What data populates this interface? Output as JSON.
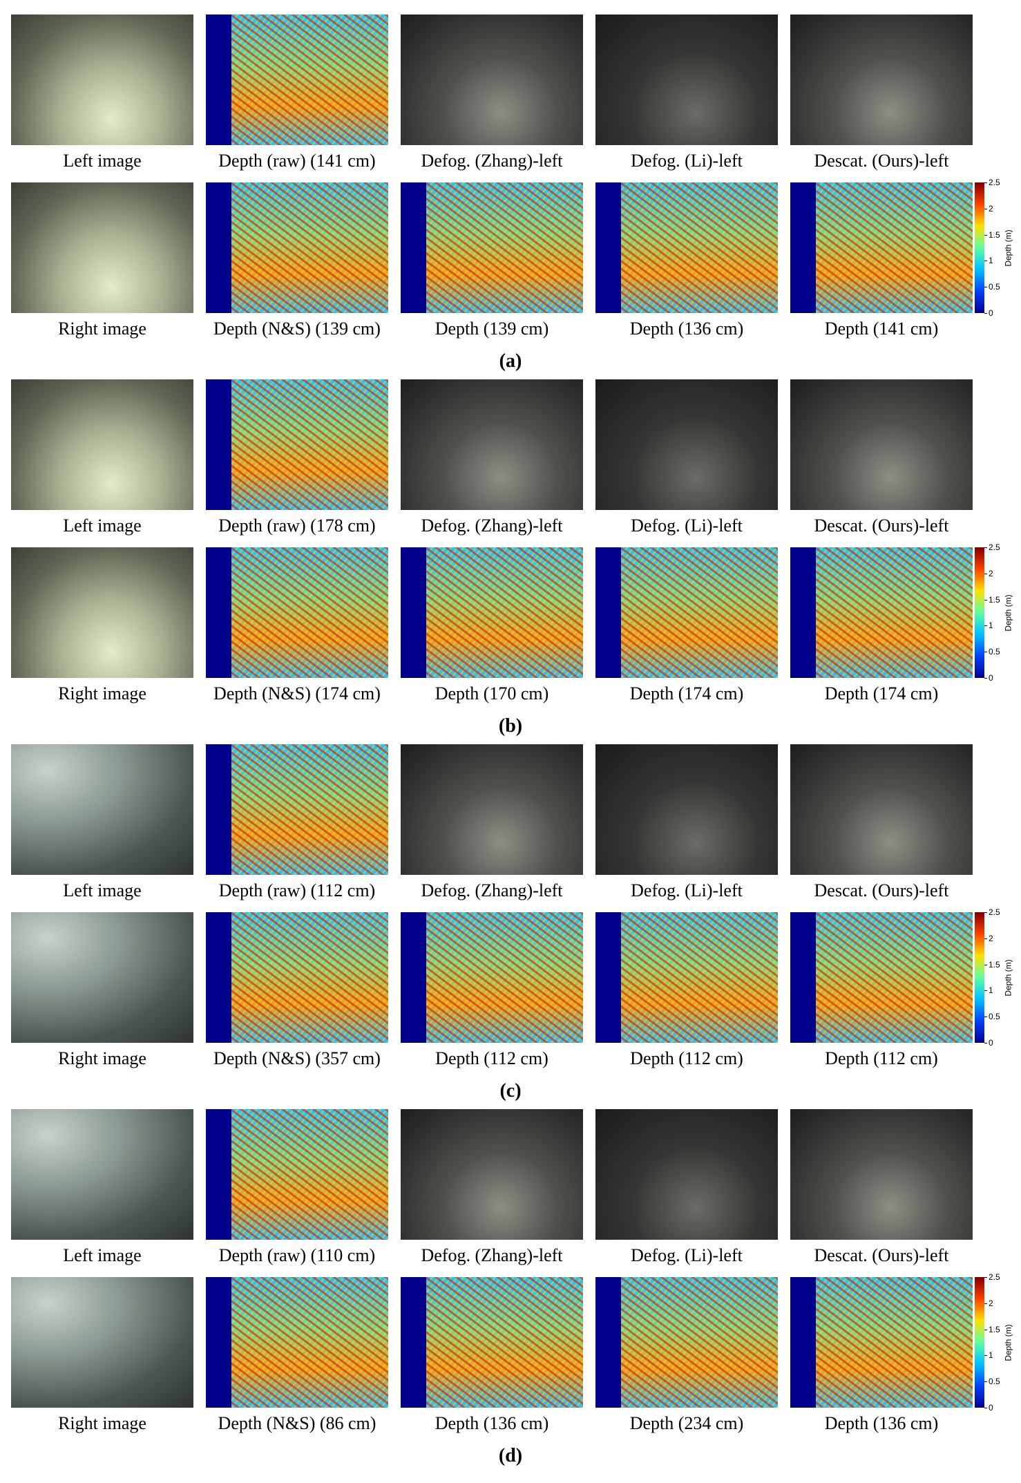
{
  "panels": [
    {
      "label": "(a)",
      "rows": [
        [
          "Left image",
          "Depth (raw) (141 cm)",
          "Defog. (Zhang)-left",
          "Defog. (Li)-left",
          "Descat. (Ours)-left"
        ],
        [
          "Right image",
          "Depth (N&S) (139 cm)",
          "Depth (139 cm)",
          "Depth (136 cm)",
          "Depth (141 cm)"
        ]
      ],
      "colorbar": {
        "ticks": [
          0,
          0.5,
          1,
          1.5,
          2,
          2.5
        ],
        "label": "Depth (m)"
      }
    },
    {
      "label": "(b)",
      "rows": [
        [
          "Left image",
          "Depth (raw) (178 cm)",
          "Defog. (Zhang)-left",
          "Defog. (Li)-left",
          "Descat. (Ours)-left"
        ],
        [
          "Right image",
          "Depth (N&S) (174 cm)",
          "Depth (170 cm)",
          "Depth (174 cm)",
          "Depth (174 cm)"
        ]
      ],
      "colorbar": {
        "ticks": [
          0,
          0.5,
          1,
          1.5,
          2,
          2.5
        ],
        "label": "Depth (m)"
      }
    },
    {
      "label": "(c)",
      "rows": [
        [
          "Left image",
          "Depth (raw) (112 cm)",
          "Defog. (Zhang)-left",
          "Defog. (Li)-left",
          "Descat. (Ours)-left"
        ],
        [
          "Right image",
          "Depth (N&S) (357 cm)",
          "Depth (112 cm)",
          "Depth (112 cm)",
          "Depth (112 cm)"
        ]
      ],
      "colorbar": {
        "ticks": [
          0,
          0.5,
          1,
          1.5,
          2,
          2.5
        ],
        "label": "Depth (m)"
      }
    },
    {
      "label": "(d)",
      "rows": [
        [
          "Left image",
          "Depth (raw) (110 cm)",
          "Defog. (Zhang)-left",
          "Defog. (Li)-left",
          "Descat. (Ours)-left"
        ],
        [
          "Right image",
          "Depth (N&S) (86 cm)",
          "Depth (136 cm)",
          "Depth (234 cm)",
          "Depth (136 cm)"
        ]
      ],
      "colorbar": {
        "ticks": [
          0,
          0.5,
          1,
          1.5,
          2,
          2.5
        ],
        "label": "Depth (m)"
      }
    }
  ]
}
